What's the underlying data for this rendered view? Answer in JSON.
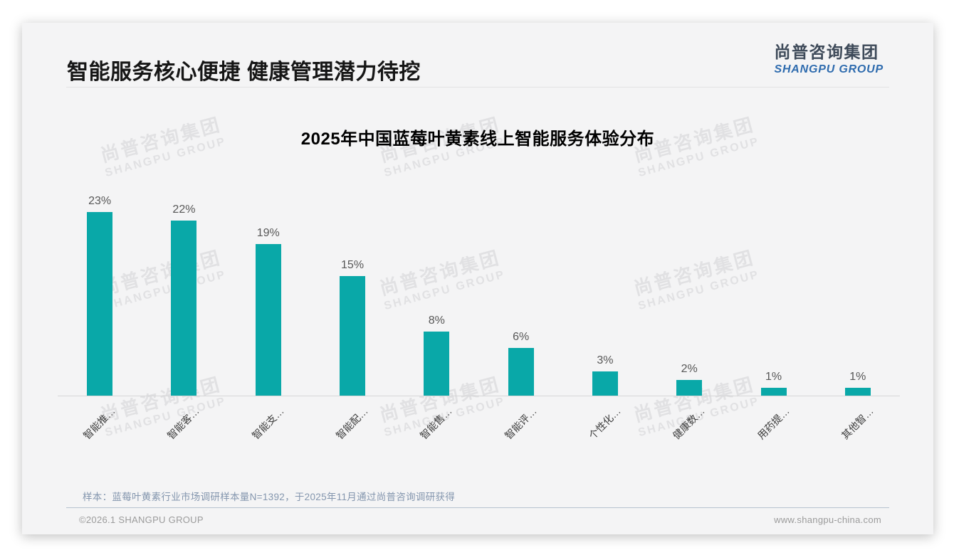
{
  "page": {
    "title": "智能服务核心便捷 健康管理潜力待挖",
    "logo": {
      "cn": "尚普咨询集团",
      "en": "SHANGPU GROUP"
    },
    "watermark": {
      "line1": "尚普咨询集团",
      "line2": "SHANGPU GROUP"
    },
    "footnote": "样本：蓝莓叶黄素行业市场调研样本量N=1392，于2025年11月通过尚普咨询调研获得",
    "footer": {
      "left": "©2026.1 SHANGPU GROUP",
      "right": "www.shangpu-china.com"
    }
  },
  "chart_data": {
    "type": "bar",
    "title": "2025年中国蓝莓叶黄素线上智能服务体验分布",
    "categories": [
      "智能推…",
      "智能客…",
      "智能支…",
      "智能配…",
      "智能售…",
      "智能评…",
      "个性化…",
      "健康数…",
      "用药提…",
      "其他智…"
    ],
    "values": [
      23,
      22,
      19,
      15,
      8,
      6,
      3,
      2,
      1,
      1
    ],
    "value_labels": [
      "23%",
      "22%",
      "19%",
      "15%",
      "8%",
      "6%",
      "3%",
      "2%",
      "1%",
      "1%"
    ],
    "unit": "%",
    "bar_color": "#09a8a8",
    "xlabel": "",
    "ylabel": "",
    "ylim": [
      0,
      25
    ],
    "grid": false,
    "legend": false,
    "value_label_position": "above-bar",
    "category_label_rotation_deg": 45
  }
}
